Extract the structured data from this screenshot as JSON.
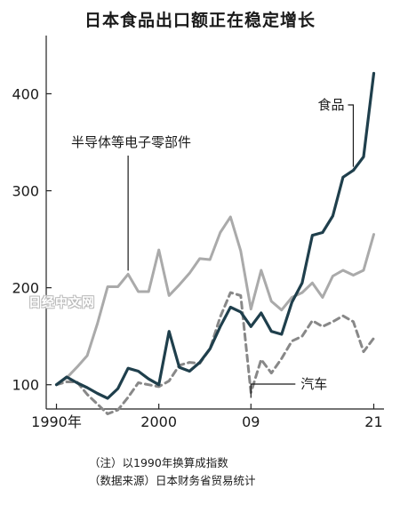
{
  "chart_data": {
    "type": "line",
    "title": "日本食品出口额正在稳定增长",
    "x": [
      1990,
      1991,
      1992,
      1993,
      1994,
      1995,
      1996,
      1997,
      1998,
      1999,
      2000,
      2001,
      2002,
      2003,
      2004,
      2005,
      2006,
      2007,
      2008,
      2009,
      2010,
      2011,
      2012,
      2013,
      2014,
      2015,
      2016,
      2017,
      2018,
      2019,
      2020,
      2021
    ],
    "x_ticks": [
      1990,
      2000,
      2009,
      2021
    ],
    "x_tick_labels": [
      "1990年",
      "2000",
      "09",
      "21"
    ],
    "y_ticks": [
      100,
      200,
      300,
      400
    ],
    "xlim": [
      1989,
      2022
    ],
    "ylim": [
      75,
      460
    ],
    "series": [
      {
        "name": "食品",
        "color": "#1f3f4c",
        "style": "solid",
        "values": [
          100,
          108,
          102,
          97,
          91,
          86,
          96,
          117,
          114,
          106,
          100,
          155,
          118,
          114,
          123,
          137,
          160,
          180,
          175,
          160,
          174,
          155,
          152,
          185,
          205,
          254,
          257,
          274,
          314,
          321,
          335,
          421
        ]
      },
      {
        "name": "半导体等电子零部件",
        "color": "#aaaaaa",
        "style": "solid",
        "values": [
          100,
          107,
          118,
          130,
          163,
          201,
          201,
          214,
          196,
          196,
          239,
          192,
          203,
          215,
          230,
          229,
          257,
          273,
          238,
          178,
          218,
          186,
          177,
          190,
          195,
          205,
          190,
          212,
          218,
          213,
          218,
          255
        ]
      },
      {
        "name": "汽车",
        "color": "#888888",
        "style": "dashed",
        "values": [
          100,
          103,
          103,
          90,
          80,
          70,
          74,
          87,
          102,
          100,
          98,
          104,
          120,
          123,
          122,
          137,
          170,
          195,
          192,
          92,
          126,
          112,
          127,
          145,
          150,
          166,
          160,
          165,
          171,
          165,
          134,
          148
        ]
      }
    ],
    "series_labels": [
      "食品",
      "半导体等电子零部件",
      "汽车"
    ]
  },
  "notes": {
    "line1": "（注）以1990年换算成指数",
    "line2": "（数据来源）日本财务省贸易统计"
  },
  "watermark": "日经中文网"
}
